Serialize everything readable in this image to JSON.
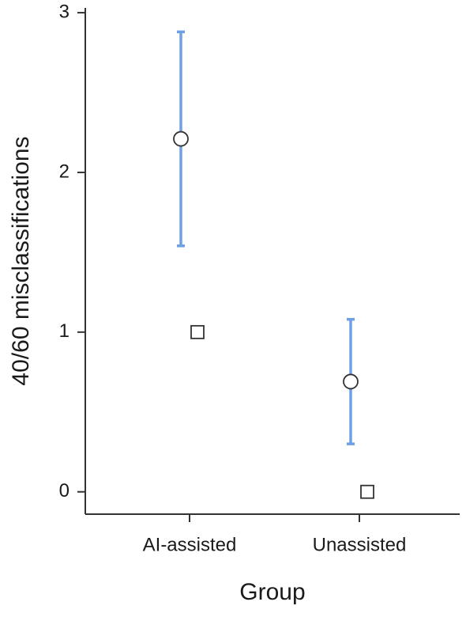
{
  "chart_data": {
    "type": "point",
    "x_label": "Group",
    "y_label": "40/60 misclassifications",
    "categories": [
      "AI-assisted",
      "Unassisted"
    ],
    "ylim": [
      -0.14,
      3.03
    ],
    "yticks": [
      0,
      1,
      2,
      3
    ],
    "series": [
      {
        "marker": "circle",
        "color": "#6fa0e6",
        "values": [
          2.21,
          0.69
        ],
        "errors": [
          0.67,
          0.39
        ]
      },
      {
        "marker": "square",
        "color": "#333333",
        "values": [
          1,
          0
        ]
      }
    ]
  }
}
